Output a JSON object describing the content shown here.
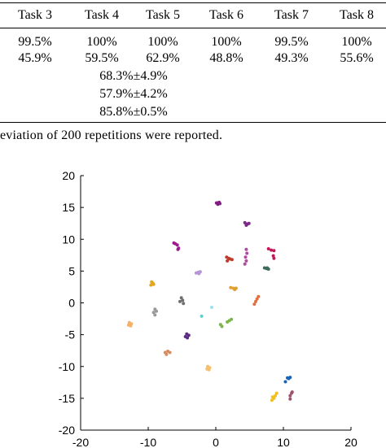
{
  "table": {
    "headers": [
      "Task 3",
      "Task 4",
      "Task 5",
      "Task 6",
      "Task 7",
      "Task 8"
    ],
    "rows": [
      [
        "99.5%",
        "100%",
        "100%",
        "100%",
        "99.5%",
        "100%"
      ],
      [
        "45.9%",
        "59.5%",
        "62.9%",
        "48.8%",
        "49.3%",
        "55.6%"
      ]
    ],
    "task4_extra": [
      "68.3%±4.9%",
      "57.9%±4.2%",
      "85.8%±0.5%"
    ]
  },
  "caption": "eviation of 200 repetitions were reported.",
  "chart_data": {
    "type": "scatter",
    "xlim": [
      -20,
      20
    ],
    "ylim": [
      -20,
      20
    ],
    "xticks": [
      -20,
      -10,
      0,
      10,
      20
    ],
    "yticks": [
      -20,
      -15,
      -10,
      -5,
      0,
      5,
      10,
      15,
      20
    ],
    "grid": false,
    "clusters": [
      {
        "color": "#7f1f7f",
        "points": [
          [
            0.2,
            15.7
          ],
          [
            0.5,
            15.8
          ],
          [
            0.3,
            15.5
          ],
          [
            0.6,
            15.6
          ],
          [
            0.1,
            15.7
          ]
        ]
      },
      {
        "color": "#7b2a8a",
        "points": [
          [
            4.3,
            12.6
          ],
          [
            4.7,
            12.4
          ],
          [
            4.5,
            12.2
          ],
          [
            4.9,
            12.5
          ]
        ]
      },
      {
        "color": "#9b1d8a",
        "points": [
          [
            -6.0,
            9.3
          ],
          [
            -5.7,
            9.1
          ],
          [
            -6.2,
            9.4
          ],
          [
            -5.5,
            8.6
          ],
          [
            -5.6,
            8.4
          ]
        ]
      },
      {
        "color": "#c2185b",
        "points": [
          [
            7.8,
            8.5
          ],
          [
            8.2,
            8.3
          ],
          [
            8.6,
            8.2
          ],
          [
            8.5,
            7.4
          ],
          [
            8.6,
            7.0
          ]
        ]
      },
      {
        "color": "#c0392b",
        "points": [
          [
            1.6,
            7.2
          ],
          [
            1.9,
            7.0
          ],
          [
            1.7,
            6.6
          ],
          [
            2.1,
            6.9
          ],
          [
            2.4,
            6.8
          ]
        ]
      },
      {
        "color": "#b04aa0",
        "points": [
          [
            4.5,
            8.4
          ],
          [
            4.6,
            7.8
          ],
          [
            4.4,
            7.2
          ],
          [
            4.5,
            6.6
          ],
          [
            4.3,
            6.1
          ]
        ]
      },
      {
        "color": "#3d6b59",
        "points": [
          [
            7.2,
            5.5
          ],
          [
            7.5,
            5.4
          ],
          [
            7.8,
            5.3
          ],
          [
            7.6,
            5.5
          ]
        ]
      },
      {
        "color": "#b794d6",
        "points": [
          [
            -2.6,
            4.8
          ],
          [
            -2.3,
            4.9
          ],
          [
            -2.9,
            4.7
          ],
          [
            -2.5,
            4.6
          ]
        ]
      },
      {
        "color": "#e2a620",
        "points": [
          [
            -9.5,
            3.3
          ],
          [
            -9.3,
            3.1
          ],
          [
            -9.6,
            2.8
          ],
          [
            -9.2,
            2.9
          ]
        ]
      },
      {
        "color": "#e0a030",
        "points": [
          [
            2.2,
            2.4
          ],
          [
            2.6,
            2.3
          ],
          [
            3.0,
            2.3
          ],
          [
            2.8,
            2.1
          ]
        ]
      },
      {
        "color": "#e07040",
        "points": [
          [
            6.3,
            1.0
          ],
          [
            6.1,
            0.6
          ],
          [
            5.9,
            0.2
          ],
          [
            5.7,
            -0.2
          ]
        ]
      },
      {
        "color": "#6f6f6f",
        "points": [
          [
            -5.1,
            0.8
          ],
          [
            -4.9,
            0.4
          ],
          [
            -5.3,
            0.2
          ],
          [
            -4.8,
            -0.1
          ]
        ]
      },
      {
        "color": "#999999",
        "points": [
          [
            -9.0,
            -1.0
          ],
          [
            -8.8,
            -1.3
          ],
          [
            -9.2,
            -1.5
          ],
          [
            -9.0,
            -1.9
          ]
        ]
      },
      {
        "color": "#66cccc",
        "points": [
          [
            -2.1,
            -2.1
          ]
        ]
      },
      {
        "color": "#a0e0f0",
        "points": [
          [
            -0.6,
            -0.7
          ]
        ]
      },
      {
        "color": "#7ab648",
        "points": [
          [
            2.0,
            -2.8
          ],
          [
            2.3,
            -2.6
          ],
          [
            1.7,
            -3.0
          ],
          [
            0.7,
            -3.4
          ],
          [
            0.9,
            -3.7
          ]
        ]
      },
      {
        "color": "#f6b26b",
        "points": [
          [
            -12.8,
            -3.1
          ],
          [
            -12.5,
            -3.3
          ],
          [
            -12.9,
            -3.5
          ],
          [
            -12.6,
            -3.6
          ]
        ]
      },
      {
        "color": "#5a2d82",
        "points": [
          [
            -4.3,
            -4.9
          ],
          [
            -4.0,
            -5.1
          ],
          [
            -4.5,
            -5.3
          ],
          [
            -4.2,
            -5.5
          ]
        ]
      },
      {
        "color": "#d98c5f",
        "points": [
          [
            -7.5,
            -7.8
          ],
          [
            -7.1,
            -7.6
          ],
          [
            -6.8,
            -7.8
          ],
          [
            -7.3,
            -8.1
          ]
        ]
      },
      {
        "color": "#f5c06f",
        "points": [
          [
            -1.2,
            -10.0
          ],
          [
            -0.9,
            -10.2
          ],
          [
            -1.3,
            -10.4
          ],
          [
            -1.0,
            -10.5
          ]
        ]
      },
      {
        "color": "#1565c0",
        "points": [
          [
            10.6,
            -11.8
          ],
          [
            11.0,
            -11.7
          ],
          [
            10.3,
            -12.4
          ],
          [
            10.8,
            -11.9
          ]
        ]
      },
      {
        "color": "#f0c020",
        "points": [
          [
            8.4,
            -14.8
          ],
          [
            8.6,
            -15.0
          ],
          [
            8.8,
            -14.6
          ],
          [
            9.0,
            -14.2
          ],
          [
            8.3,
            -15.3
          ]
        ]
      },
      {
        "color": "#a0526d",
        "points": [
          [
            11.2,
            -14.2
          ],
          [
            11.0,
            -14.6
          ],
          [
            11.0,
            -15.1
          ],
          [
            11.3,
            -14.0
          ]
        ]
      }
    ]
  }
}
